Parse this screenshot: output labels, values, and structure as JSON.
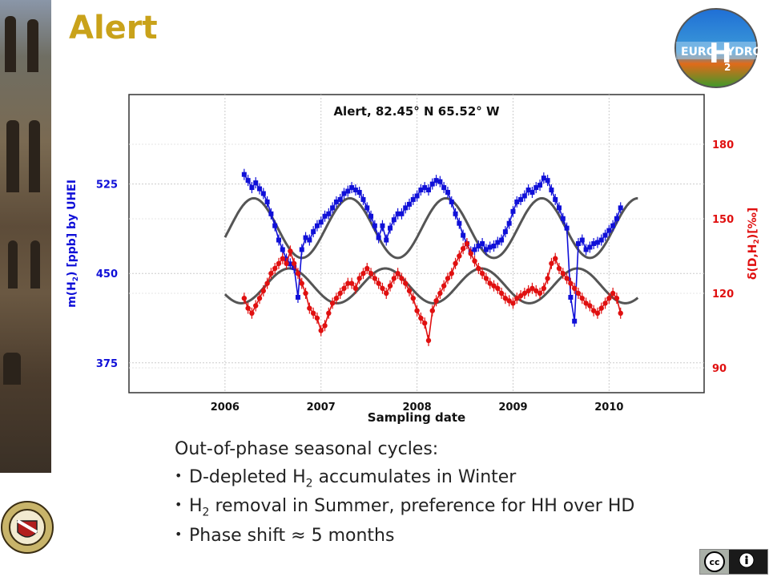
{
  "slide": {
    "title": "Alert",
    "logo": {
      "word_left": "EURO",
      "word_big": "H",
      "word_right": "YDROS",
      "subscript": "2"
    },
    "seal_icon": "university-seal",
    "license_icon": "creative-commons-by-badge"
  },
  "bullets": {
    "heading": "Out-of-phase seasonal cycles:",
    "items": [
      {
        "pre": "D-depleted H",
        "sub": "2",
        "post": " accumulates in Winter"
      },
      {
        "pre": "H",
        "sub": "2",
        "post": " removal in Summer, preference for HH over HD"
      },
      {
        "pre": "Phase shift ≈ 5 months",
        "sub": "",
        "post": ""
      }
    ]
  },
  "chart_data": {
    "type": "scatter",
    "title": "Alert, 82.45° N 65.52° W",
    "xlabel": "Sampling date",
    "ylabel_left": {
      "pre": "m(H",
      "sub": "2",
      "post": ") [ppb] by UHEI"
    },
    "ylabel_right": {
      "pre": "δ(D,H",
      "sub": "2",
      "post": ")[‰]"
    },
    "xlim": [
      2005.0,
      2010.99
    ],
    "x_ticks": [
      2006,
      2007,
      2008,
      2009,
      2010
    ],
    "ylim_left": [
      350,
      600
    ],
    "y_ticks_left": [
      375,
      450,
      525
    ],
    "ylim_right": [
      80,
      200
    ],
    "y_ticks_right": [
      90,
      120,
      150,
      180
    ],
    "grid": true,
    "colors": {
      "left": "#1010d8",
      "right": "#e01010",
      "fit": "#555555",
      "title_color": "#c9a21a"
    },
    "series": [
      {
        "name": "m(H2)",
        "axis": "left",
        "fit_curve": {
          "mean": 488,
          "amplitude": 25,
          "peak_phase": 0.3,
          "x_range": [
            2006.0,
            2010.3
          ]
        },
        "x": [
          2006.2,
          2006.24,
          2006.28,
          2006.32,
          2006.36,
          2006.4,
          2006.44,
          2006.48,
          2006.52,
          2006.56,
          2006.6,
          2006.64,
          2006.68,
          2006.72,
          2006.76,
          2006.8,
          2006.84,
          2006.88,
          2006.92,
          2006.96,
          2007.0,
          2007.04,
          2007.08,
          2007.12,
          2007.16,
          2007.2,
          2007.24,
          2007.28,
          2007.32,
          2007.36,
          2007.4,
          2007.44,
          2007.48,
          2007.52,
          2007.56,
          2007.6,
          2007.64,
          2007.68,
          2007.72,
          2007.76,
          2007.8,
          2007.84,
          2007.88,
          2007.92,
          2007.96,
          2008.0,
          2008.04,
          2008.08,
          2008.12,
          2008.16,
          2008.2,
          2008.24,
          2008.28,
          2008.32,
          2008.36,
          2008.4,
          2008.44,
          2008.48,
          2008.52,
          2008.56,
          2008.6,
          2008.64,
          2008.68,
          2008.72,
          2008.76,
          2008.8,
          2008.84,
          2008.88,
          2008.92,
          2008.96,
          2009.0,
          2009.04,
          2009.08,
          2009.12,
          2009.16,
          2009.2,
          2009.24,
          2009.28,
          2009.32,
          2009.36,
          2009.4,
          2009.44,
          2009.48,
          2009.52,
          2009.56,
          2009.6,
          2009.64,
          2009.68,
          2009.72,
          2009.76,
          2009.8,
          2009.84,
          2009.88,
          2009.92,
          2009.96,
          2010.0,
          2010.04,
          2010.08,
          2010.12
        ],
        "values": [
          533,
          528,
          522,
          526,
          521,
          517,
          510,
          500,
          490,
          478,
          470,
          462,
          458,
          455,
          430,
          470,
          480,
          478,
          485,
          490,
          493,
          498,
          500,
          505,
          510,
          512,
          517,
          519,
          522,
          520,
          518,
          512,
          505,
          498,
          490,
          480,
          490,
          478,
          488,
          495,
          500,
          500,
          505,
          508,
          512,
          515,
          520,
          522,
          520,
          525,
          528,
          527,
          522,
          518,
          510,
          500,
          492,
          482,
          475,
          468,
          470,
          473,
          475,
          470,
          472,
          473,
          476,
          478,
          485,
          492,
          502,
          510,
          512,
          515,
          520,
          518,
          522,
          524,
          530,
          528,
          520,
          512,
          505,
          496,
          488,
          430,
          410,
          475,
          478,
          470,
          472,
          475,
          476,
          478,
          482,
          486,
          490,
          496,
          505
        ]
      },
      {
        "name": "δD",
        "axis": "right",
        "fit_curve": {
          "mean": 123,
          "amplitude": 7,
          "peak_phase": 0.67,
          "x_range": [
            2006.0,
            2010.3
          ]
        },
        "x": [
          2006.2,
          2006.24,
          2006.28,
          2006.32,
          2006.36,
          2006.4,
          2006.44,
          2006.48,
          2006.52,
          2006.56,
          2006.6,
          2006.64,
          2006.68,
          2006.72,
          2006.76,
          2006.8,
          2006.84,
          2006.88,
          2006.92,
          2006.96,
          2007.0,
          2007.04,
          2007.08,
          2007.12,
          2007.16,
          2007.2,
          2007.24,
          2007.28,
          2007.32,
          2007.36,
          2007.4,
          2007.44,
          2007.48,
          2007.52,
          2007.56,
          2007.6,
          2007.64,
          2007.68,
          2007.72,
          2007.76,
          2007.8,
          2007.84,
          2007.88,
          2007.92,
          2007.96,
          2008.0,
          2008.04,
          2008.08,
          2008.12,
          2008.16,
          2008.2,
          2008.24,
          2008.28,
          2008.32,
          2008.36,
          2008.4,
          2008.44,
          2008.48,
          2008.52,
          2008.56,
          2008.6,
          2008.64,
          2008.68,
          2008.72,
          2008.76,
          2008.8,
          2008.84,
          2008.88,
          2008.92,
          2008.96,
          2009.0,
          2009.04,
          2009.08,
          2009.12,
          2009.16,
          2009.2,
          2009.24,
          2009.28,
          2009.32,
          2009.36,
          2009.4,
          2009.44,
          2009.48,
          2009.52,
          2009.56,
          2009.6,
          2009.64,
          2009.68,
          2009.72,
          2009.76,
          2009.8,
          2009.84,
          2009.88,
          2009.92,
          2009.96,
          2010.0,
          2010.04,
          2010.08,
          2010.12
        ],
        "values": [
          118,
          114,
          112,
          115,
          118,
          121,
          124,
          128,
          130,
          132,
          134,
          132,
          137,
          132,
          128,
          124,
          120,
          114,
          112,
          110,
          105,
          107,
          112,
          116,
          118,
          120,
          122,
          124,
          124,
          122,
          126,
          128,
          130,
          128,
          126,
          124,
          122,
          120,
          123,
          126,
          128,
          126,
          124,
          121,
          118,
          113,
          110,
          108,
          101,
          113,
          117,
          120,
          123,
          126,
          128,
          132,
          135,
          138,
          140,
          136,
          133,
          130,
          128,
          126,
          124,
          123,
          122,
          120,
          118,
          117,
          116,
          118,
          119,
          120,
          121,
          122,
          121,
          120,
          122,
          126,
          132,
          134,
          130,
          128,
          126,
          124,
          122,
          120,
          118,
          116,
          115,
          113,
          112,
          114,
          116,
          118,
          120,
          118,
          112
        ]
      }
    ]
  }
}
